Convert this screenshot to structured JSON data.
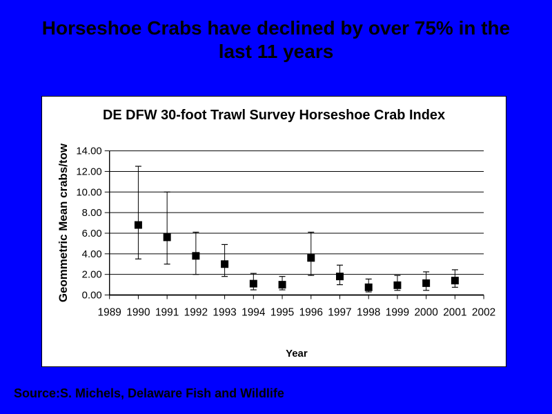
{
  "slide": {
    "background_color": "#0000ff",
    "text_color": "#000000",
    "title_lines": [
      "Horseshoe Crabs have declined by over 75% in the",
      "last 11 years"
    ],
    "source": "Source:S. Michels, Delaware Fish and Wildlife"
  },
  "chart_data": {
    "type": "scatter",
    "title": "DE DFW 30-foot Trawl Survey Horseshoe Crab Index",
    "xlabel": "Year",
    "ylabel": "Geommetric Mean crabs/tow",
    "x_categories": [
      "1989",
      "1990",
      "1991",
      "1992",
      "1993",
      "1994",
      "1995",
      "1996",
      "1997",
      "1998",
      "1999",
      "2000",
      "2001",
      "2002"
    ],
    "ylim": [
      0,
      14
    ],
    "ytick_labels": [
      "0.00",
      "2.00",
      "4.00",
      "6.00",
      "8.00",
      "10.00",
      "12.00",
      "14.00"
    ],
    "grid": true,
    "legend": "none",
    "marker": "filled-square",
    "marker_color": "#000000",
    "error_bars": true,
    "series": [
      {
        "name": "Horseshoe Crab Index",
        "points": [
          {
            "year": "1990",
            "value": 6.8,
            "err_low": 3.5,
            "err_high": 12.5
          },
          {
            "year": "1991",
            "value": 5.6,
            "err_low": 3.0,
            "err_high": 10.0
          },
          {
            "year": "1992",
            "value": 3.8,
            "err_low": 2.0,
            "err_high": 6.1
          },
          {
            "year": "1993",
            "value": 3.0,
            "err_low": 1.8,
            "err_high": 4.9
          },
          {
            "year": "1994",
            "value": 1.1,
            "err_low": 0.5,
            "err_high": 2.1
          },
          {
            "year": "1995",
            "value": 1.0,
            "err_low": 0.5,
            "err_high": 1.8
          },
          {
            "year": "1996",
            "value": 3.6,
            "err_low": 1.9,
            "err_high": 6.1
          },
          {
            "year": "1997",
            "value": 1.8,
            "err_low": 1.0,
            "err_high": 2.9
          },
          {
            "year": "1998",
            "value": 0.75,
            "err_low": 0.3,
            "err_high": 1.55
          },
          {
            "year": "1999",
            "value": 0.95,
            "err_low": 0.45,
            "err_high": 1.9
          },
          {
            "year": "2000",
            "value": 1.15,
            "err_low": 0.45,
            "err_high": 2.25
          },
          {
            "year": "2001",
            "value": 1.4,
            "err_low": 0.75,
            "err_high": 2.45
          }
        ]
      }
    ]
  }
}
